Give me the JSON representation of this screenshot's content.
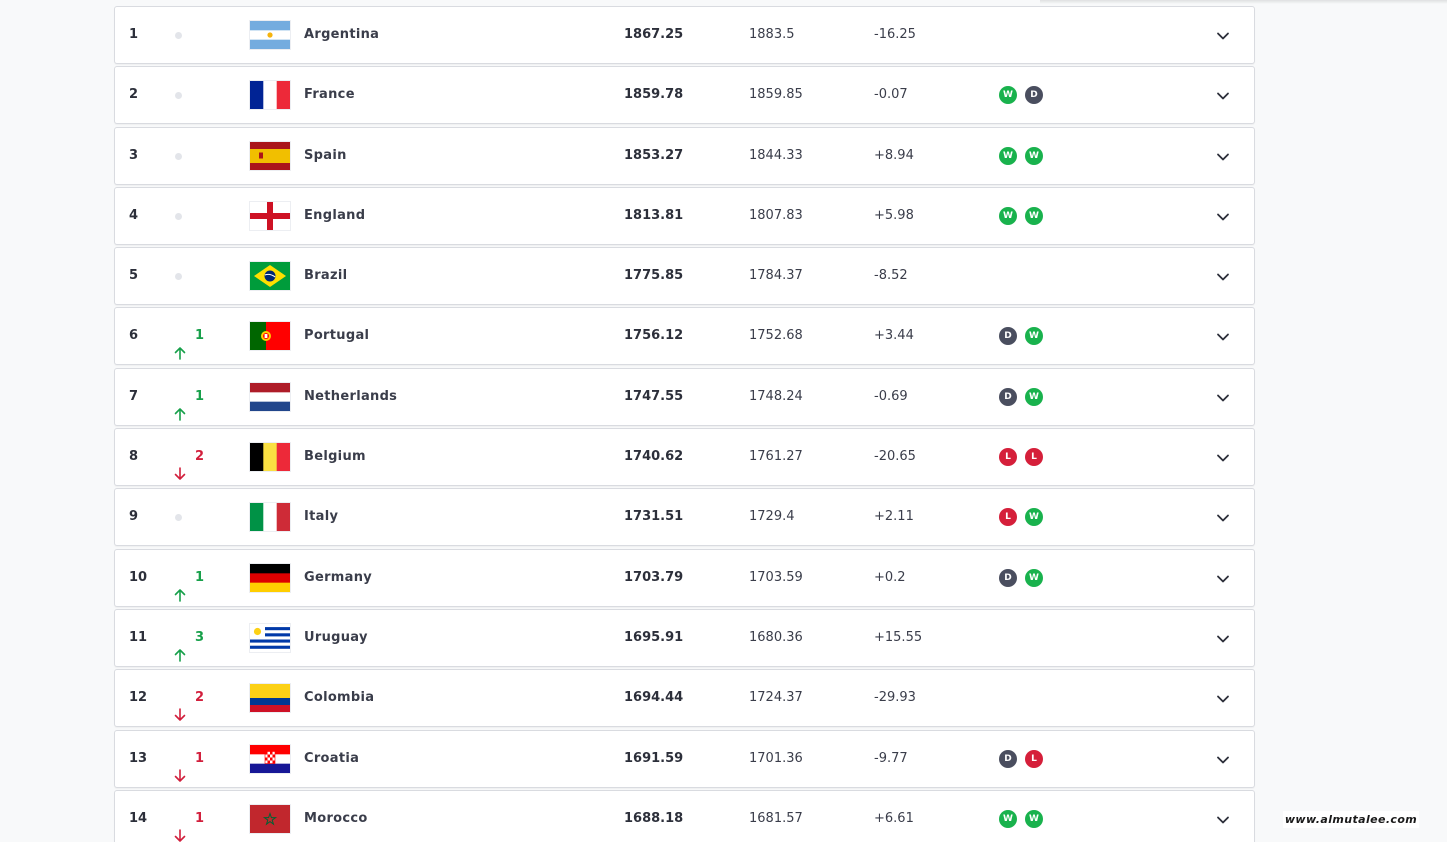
{
  "colors": {
    "up": "#17a04a",
    "down": "#d21f3c",
    "win": "#19b24d",
    "draw": "#4a4e5f",
    "loss": "#d51f3a",
    "row_border": "#d9dbe0",
    "background": "#f8f9fa"
  },
  "icons": {
    "no_change": "grey-dot-icon",
    "up": "arrow-up-icon",
    "down": "arrow-down-icon",
    "expand": "chevron-down-icon"
  },
  "rankings": [
    {
      "rank": "1",
      "movement": "none",
      "change": "",
      "flag": "argentina",
      "team": "Argentina",
      "total_points": "1867.25",
      "previous_points": "1883.5",
      "difference": "-16.25",
      "form": []
    },
    {
      "rank": "2",
      "movement": "none",
      "change": "",
      "flag": "france",
      "team": "France",
      "total_points": "1859.78",
      "previous_points": "1859.85",
      "difference": "-0.07",
      "form": [
        "W",
        "D"
      ]
    },
    {
      "rank": "3",
      "movement": "none",
      "change": "",
      "flag": "spain",
      "team": "Spain",
      "total_points": "1853.27",
      "previous_points": "1844.33",
      "difference": "+8.94",
      "form": [
        "W",
        "W"
      ]
    },
    {
      "rank": "4",
      "movement": "none",
      "change": "",
      "flag": "england",
      "team": "England",
      "total_points": "1813.81",
      "previous_points": "1807.83",
      "difference": "+5.98",
      "form": [
        "W",
        "W"
      ]
    },
    {
      "rank": "5",
      "movement": "none",
      "change": "",
      "flag": "brazil",
      "team": "Brazil",
      "total_points": "1775.85",
      "previous_points": "1784.37",
      "difference": "-8.52",
      "form": []
    },
    {
      "rank": "6",
      "movement": "up",
      "change": "1",
      "flag": "portugal",
      "team": "Portugal",
      "total_points": "1756.12",
      "previous_points": "1752.68",
      "difference": "+3.44",
      "form": [
        "D",
        "W"
      ]
    },
    {
      "rank": "7",
      "movement": "up",
      "change": "1",
      "flag": "netherlands",
      "team": "Netherlands",
      "total_points": "1747.55",
      "previous_points": "1748.24",
      "difference": "-0.69",
      "form": [
        "D",
        "W"
      ]
    },
    {
      "rank": "8",
      "movement": "down",
      "change": "2",
      "flag": "belgium",
      "team": "Belgium",
      "total_points": "1740.62",
      "previous_points": "1761.27",
      "difference": "-20.65",
      "form": [
        "L",
        "L"
      ]
    },
    {
      "rank": "9",
      "movement": "none",
      "change": "",
      "flag": "italy",
      "team": "Italy",
      "total_points": "1731.51",
      "previous_points": "1729.4",
      "difference": "+2.11",
      "form": [
        "L",
        "W"
      ]
    },
    {
      "rank": "10",
      "movement": "up",
      "change": "1",
      "flag": "germany",
      "team": "Germany",
      "total_points": "1703.79",
      "previous_points": "1703.59",
      "difference": "+0.2",
      "form": [
        "D",
        "W"
      ]
    },
    {
      "rank": "11",
      "movement": "up",
      "change": "3",
      "flag": "uruguay",
      "team": "Uruguay",
      "total_points": "1695.91",
      "previous_points": "1680.36",
      "difference": "+15.55",
      "form": []
    },
    {
      "rank": "12",
      "movement": "down",
      "change": "2",
      "flag": "colombia",
      "team": "Colombia",
      "total_points": "1694.44",
      "previous_points": "1724.37",
      "difference": "-29.93",
      "form": []
    },
    {
      "rank": "13",
      "movement": "down",
      "change": "1",
      "flag": "croatia",
      "team": "Croatia",
      "total_points": "1691.59",
      "previous_points": "1701.36",
      "difference": "-9.77",
      "form": [
        "D",
        "L"
      ]
    },
    {
      "rank": "14",
      "movement": "down",
      "change": "1",
      "flag": "morocco",
      "team": "Morocco",
      "total_points": "1688.18",
      "previous_points": "1681.57",
      "difference": "+6.61",
      "form": [
        "W",
        "W"
      ]
    }
  ],
  "watermark": "www.almutalee.com"
}
